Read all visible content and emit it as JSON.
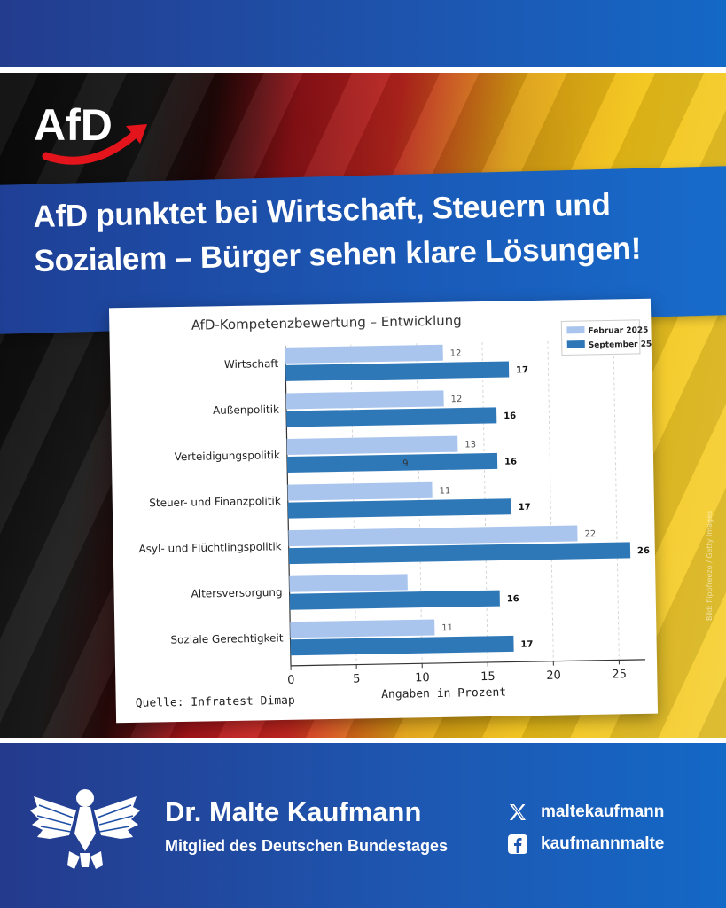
{
  "headline": {
    "line1": "AfD punktet bei Wirtschaft, Steuern und",
    "line2": "Sozialem – Bürger sehen klare Lösungen!"
  },
  "logo": {
    "text": "AfD"
  },
  "photo_credit": "Bild: flippfreezo / Getty Images",
  "chart_data": {
    "type": "bar",
    "orientation": "horizontal",
    "title": "AfD-Kompetenzbewertung – Entwicklung",
    "categories": [
      "Wirtschaft",
      "Außenpolitik",
      "Verteidigungspolitik",
      "Steuer- und Finanzpolitik",
      "Asyl- und Flüchtlingspolitik",
      "Altersversorgung",
      "Soziale Gerechtigkeit"
    ],
    "series": [
      {
        "name": "Februar 2025",
        "color": "#a9c5ee",
        "values": [
          12,
          12,
          13,
          11,
          22,
          9,
          11
        ],
        "labels": [
          "12",
          "12",
          "13",
          "11",
          "22",
          "",
          "11"
        ]
      },
      {
        "name": "September 25",
        "color": "#2f78b8",
        "values": [
          17,
          16,
          16,
          17,
          26,
          16,
          17
        ],
        "labels": [
          "17",
          "16",
          "16",
          "17",
          "26",
          "16",
          "17"
        ]
      }
    ],
    "extra_annotation": {
      "text": "9",
      "category": "Verteidigungspolitik",
      "value": 9
    },
    "xlabel": "Angaben in Prozent",
    "xlim": [
      0,
      27
    ],
    "xticks": [
      0,
      5,
      10,
      15,
      20,
      25
    ],
    "grid": true,
    "legend": "top-right",
    "source": "Quelle: Infratest Dimap"
  },
  "footer": {
    "name": "Dr. Malte Kaufmann",
    "role": "Mitglied des Deutschen Bundestages",
    "x_handle": "maltekaufmann",
    "facebook_handle": "kaufmannmalte"
  },
  "icons": {
    "x": "x-logo-icon",
    "facebook": "facebook-icon",
    "eagle": "bundestag-eagle-icon"
  }
}
